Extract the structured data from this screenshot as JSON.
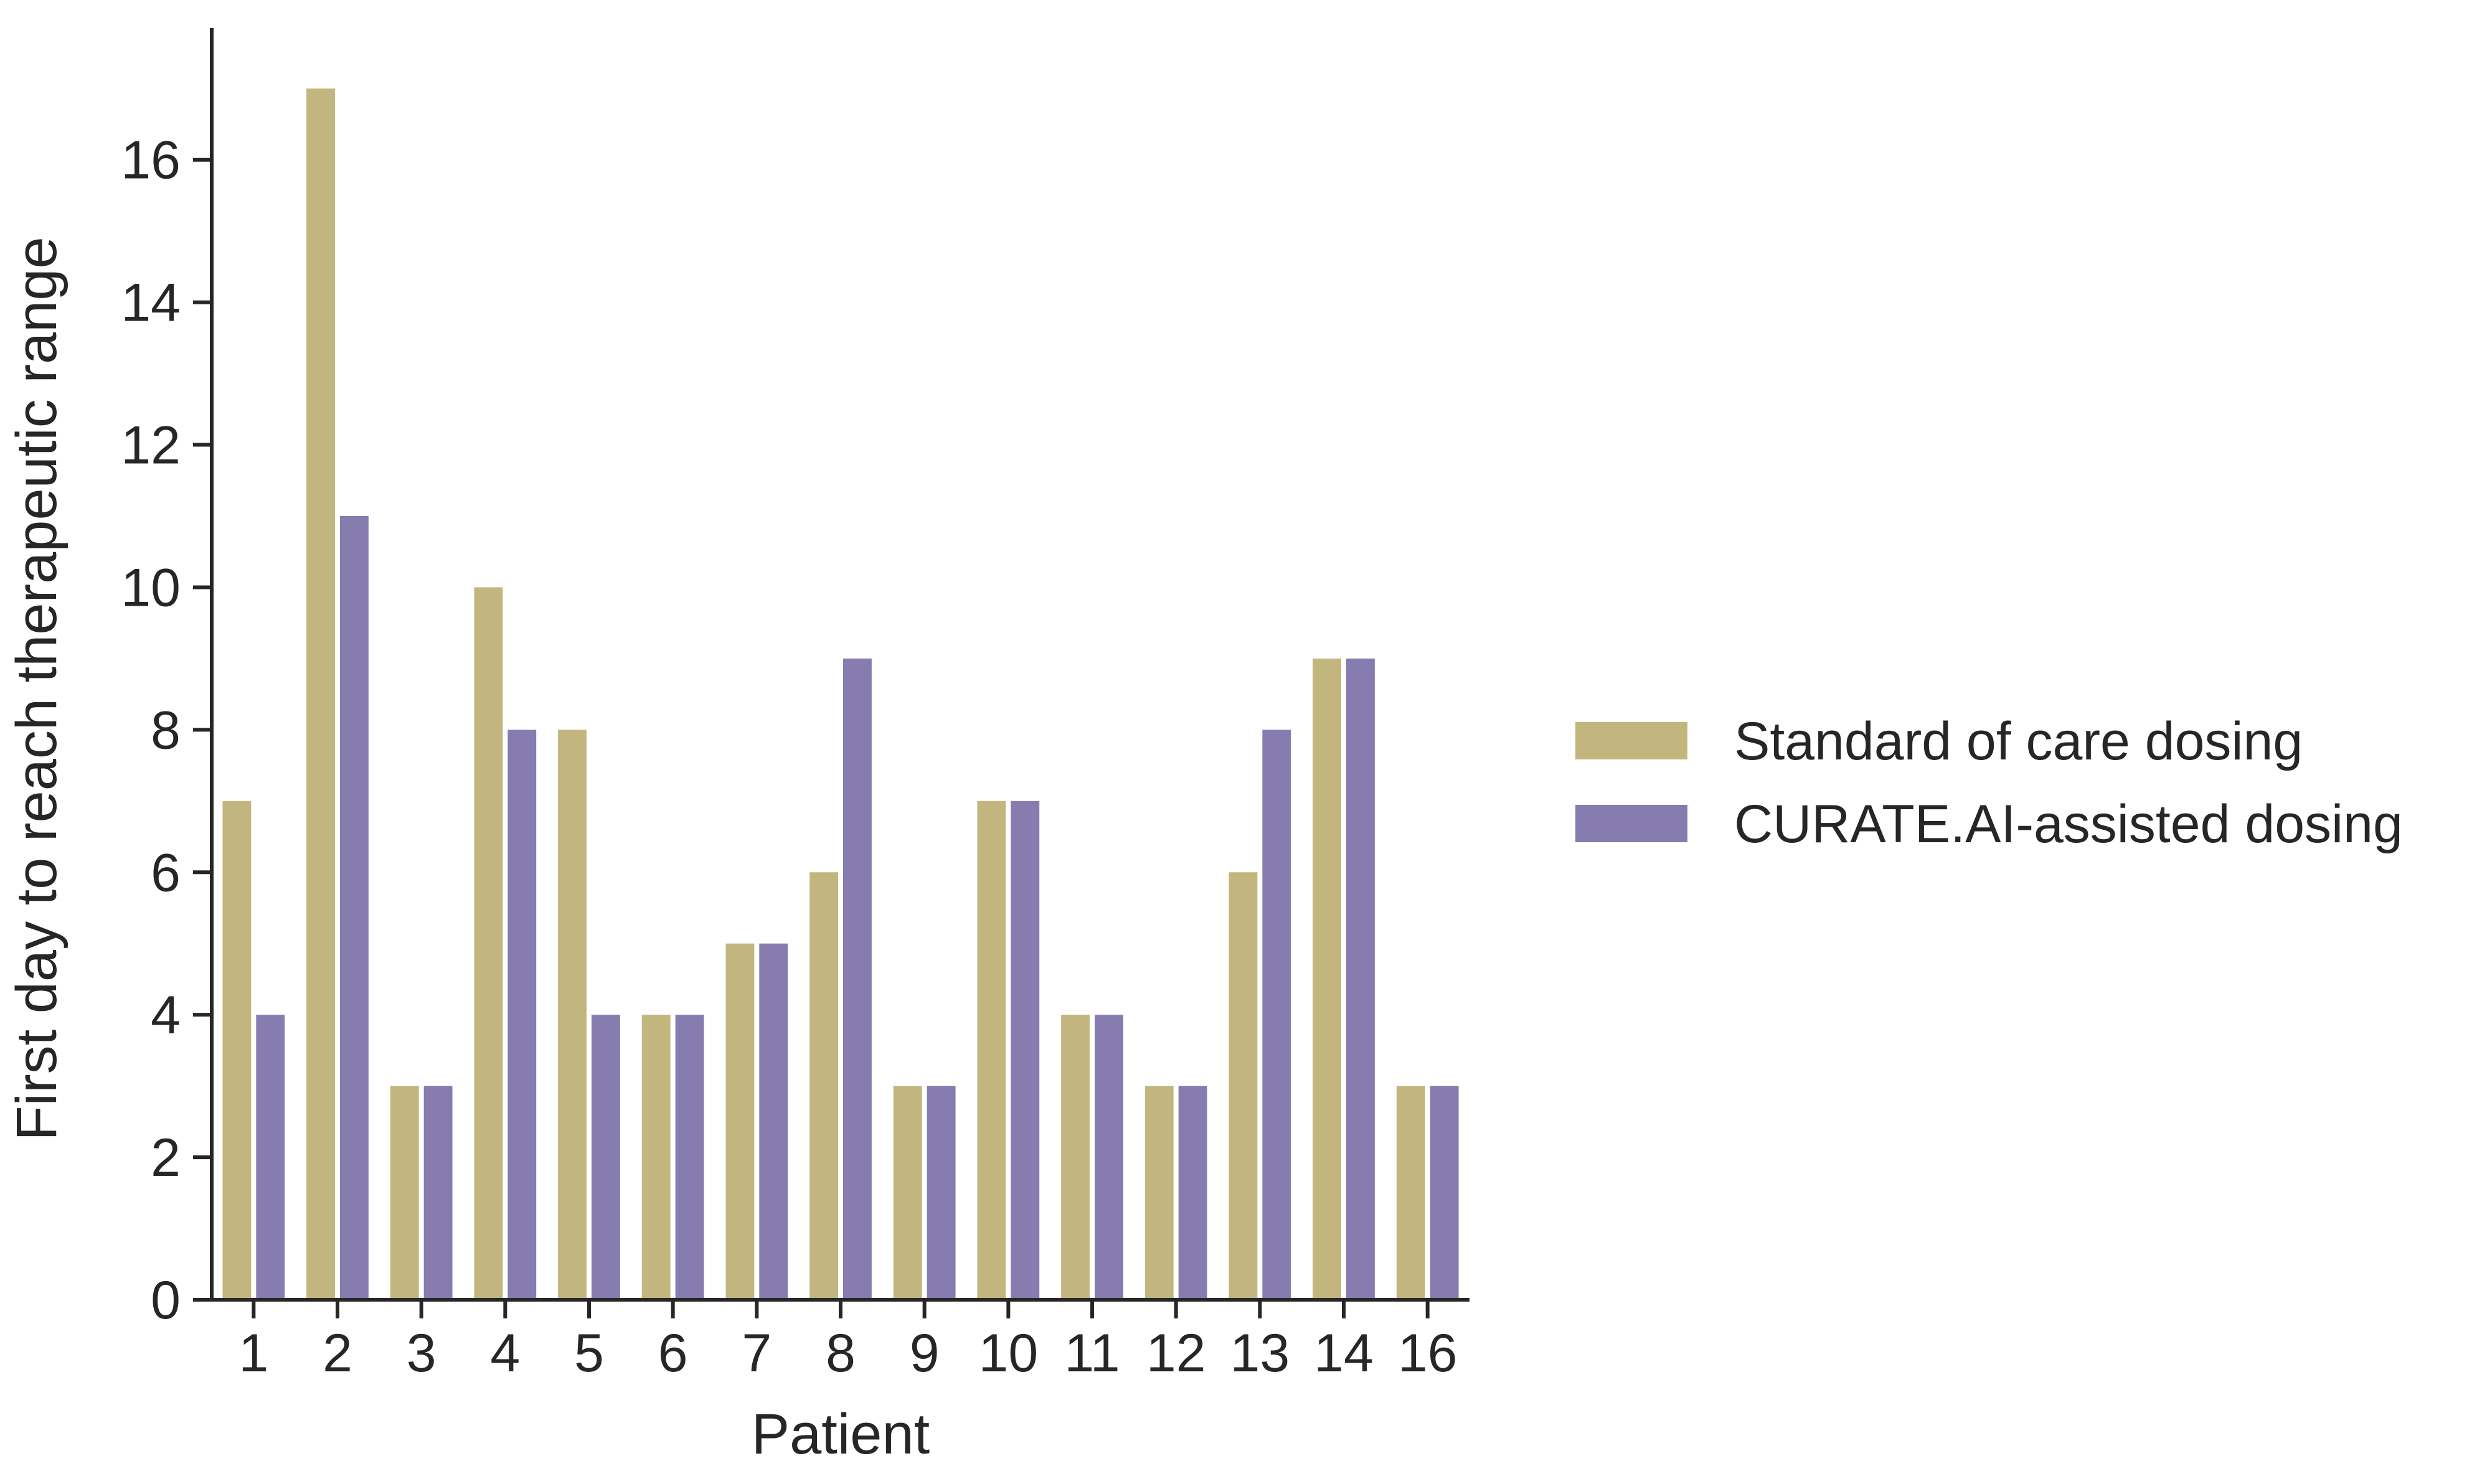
{
  "chart_data": {
    "type": "bar",
    "xlabel": "Patient",
    "ylabel": "First day to reach therapeutic range",
    "categories": [
      "1",
      "2",
      "3",
      "4",
      "5",
      "6",
      "7",
      "8",
      "9",
      "10",
      "11",
      "12",
      "13",
      "14",
      "16"
    ],
    "series": [
      {
        "name": "Standard of care dosing",
        "color": "#c2b67e",
        "values": [
          7,
          17,
          3,
          10,
          8,
          4,
          5,
          6,
          3,
          7,
          4,
          3,
          6,
          9,
          3
        ]
      },
      {
        "name": "CURATE.AI-assisted dosing",
        "color": "#867caf",
        "values": [
          4,
          11,
          3,
          8,
          4,
          4,
          5,
          9,
          3,
          7,
          4,
          3,
          8,
          9,
          3
        ]
      }
    ],
    "ylim": [
      0,
      17.85
    ],
    "yticks": [
      0,
      2,
      4,
      6,
      8,
      10,
      12,
      14,
      16
    ],
    "grid": false,
    "legend_position": "right"
  }
}
